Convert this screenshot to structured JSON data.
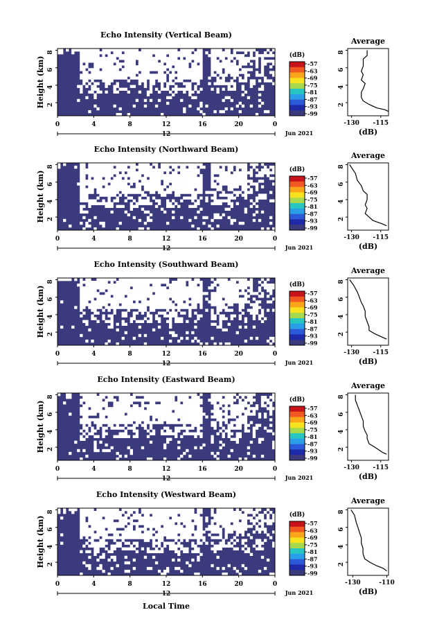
{
  "figure": {
    "xlabel": "Local Time",
    "date_label": "Jun 2021"
  },
  "colorbar": {
    "unit": "(dB)",
    "ticks": [
      "-57",
      "-63",
      "-69",
      "-75",
      "-81",
      "-87",
      "-93",
      "-99"
    ],
    "colors": [
      "#c9131a",
      "#f05a22",
      "#f9a61a",
      "#f6e21e",
      "#a6d94d",
      "#28c6c1",
      "#2a9ee6",
      "#2a5ad8",
      "#1e2aa8",
      "#3a3a7c"
    ]
  },
  "chart_data": [
    {
      "type": "heatmap",
      "title": "Echo Intensity (Vertical Beam)",
      "ylabel": "Height (km)",
      "yticks": [
        "8",
        "6",
        "4",
        "2"
      ],
      "xticks": [
        "0",
        "4",
        "8",
        "12",
        "16",
        "20",
        "0"
      ],
      "x_sub": "12",
      "date": "Jun 2021",
      "xlim": [
        0,
        24
      ],
      "ylim": [
        0.5,
        8.2
      ],
      "background_color": "#3a3a7c",
      "no_data_color": "#ffffff",
      "avg": {
        "title": "Average",
        "xlabel": "(dB)",
        "xticks": [
          "-130",
          "-115"
        ],
        "xlim": [
          -132,
          -111
        ],
        "profile": [
          [
            -122,
            8
          ],
          [
            -122,
            7.4
          ],
          [
            -124,
            7
          ],
          [
            -124,
            6.2
          ],
          [
            -125,
            5.6
          ],
          [
            -124,
            5.2
          ],
          [
            -125,
            4.6
          ],
          [
            -123,
            4.2
          ],
          [
            -124,
            3.6
          ],
          [
            -125,
            3.2
          ],
          [
            -125,
            2.6
          ],
          [
            -124,
            2.2
          ],
          [
            -121,
            1.8
          ],
          [
            -117,
            1.4
          ],
          [
            -113,
            1.2
          ],
          [
            -111,
            1
          ]
        ]
      },
      "mask_seed": 11
    },
    {
      "type": "heatmap",
      "title": "Echo Intensity (Northward Beam)",
      "ylabel": "Height (km)",
      "yticks": [
        "8",
        "6",
        "4",
        "2"
      ],
      "xticks": [
        "0",
        "4",
        "8",
        "12",
        "16",
        "20",
        "0"
      ],
      "x_sub": "12",
      "date": "Jun 2021",
      "xlim": [
        0,
        24
      ],
      "ylim": [
        0.5,
        8.2
      ],
      "background_color": "#3a3a7c",
      "no_data_color": "#ffffff",
      "avg": {
        "title": "Average",
        "xlabel": "(dB)",
        "xticks": [
          "-130",
          "-115"
        ],
        "xlim": [
          -132,
          -111
        ],
        "profile": [
          [
            -131,
            8
          ],
          [
            -128,
            7
          ],
          [
            -127,
            6.2
          ],
          [
            -125,
            5.6
          ],
          [
            -124,
            5
          ],
          [
            -122,
            4.6
          ],
          [
            -122,
            4
          ],
          [
            -123,
            3.4
          ],
          [
            -122,
            3
          ],
          [
            -123,
            2.4
          ],
          [
            -121,
            2
          ],
          [
            -119,
            1.6
          ],
          [
            -114,
            1.2
          ],
          [
            -112,
            1
          ]
        ]
      },
      "mask_seed": 23
    },
    {
      "type": "heatmap",
      "title": "Echo Intensity (Southward Beam)",
      "ylabel": "Height (km)",
      "yticks": [
        "8",
        "6",
        "4",
        "2"
      ],
      "xticks": [
        "0",
        "4",
        "8",
        "12",
        "16",
        "20",
        "0"
      ],
      "x_sub": "12",
      "date": "Jun 2021",
      "xlim": [
        0,
        24
      ],
      "ylim": [
        0.5,
        8.2
      ],
      "background_color": "#3a3a7c",
      "no_data_color": "#ffffff",
      "avg": {
        "title": "Average",
        "xlabel": "(dB)",
        "xticks": [
          "-130",
          "-115"
        ],
        "xlim": [
          -132,
          -111
        ],
        "profile": [
          [
            -131,
            8
          ],
          [
            -129,
            7.4
          ],
          [
            -127,
            6.6
          ],
          [
            -126,
            6
          ],
          [
            -125,
            5.4
          ],
          [
            -124,
            5
          ],
          [
            -123,
            4.4
          ],
          [
            -123,
            3.8
          ],
          [
            -122,
            3.2
          ],
          [
            -121,
            2.6
          ],
          [
            -121,
            2.2
          ],
          [
            -118,
            1.8
          ],
          [
            -114,
            1.4
          ],
          [
            -112,
            1.2
          ]
        ]
      },
      "mask_seed": 37
    },
    {
      "type": "heatmap",
      "title": "Echo Intensity (Eastward Beam)",
      "ylabel": "Height (km)",
      "yticks": [
        "8",
        "6",
        "4",
        "2"
      ],
      "xticks": [
        "0",
        "4",
        "8",
        "12",
        "16",
        "20",
        "0"
      ],
      "x_sub": "12",
      "date": "Jun 2021",
      "xlim": [
        0,
        24
      ],
      "ylim": [
        0.5,
        8.2
      ],
      "background_color": "#3a3a7c",
      "no_data_color": "#ffffff",
      "avg": {
        "title": "Average",
        "xlabel": "(dB)",
        "xticks": [
          "-130",
          "-115"
        ],
        "xlim": [
          -132,
          -111
        ],
        "profile": [
          [
            -128,
            8
          ],
          [
            -128,
            7.4
          ],
          [
            -127,
            6.8
          ],
          [
            -126,
            6.2
          ],
          [
            -125,
            5.6
          ],
          [
            -124,
            5
          ],
          [
            -124,
            4.4
          ],
          [
            -123,
            3.8
          ],
          [
            -122,
            3.4
          ],
          [
            -122,
            3
          ],
          [
            -121,
            2.4
          ],
          [
            -118,
            2
          ],
          [
            -114,
            1.4
          ],
          [
            -112,
            1.2
          ]
        ]
      },
      "mask_seed": 51
    },
    {
      "type": "heatmap",
      "title": "Echo Intensity (Westward Beam)",
      "ylabel": "Height (km)",
      "yticks": [
        "8",
        "6",
        "4",
        "2"
      ],
      "xticks": [
        "0",
        "4",
        "8",
        "12",
        "16",
        "20",
        "0"
      ],
      "x_sub": "12",
      "date": "Jun 2021",
      "xlim": [
        0,
        24
      ],
      "ylim": [
        0.5,
        8.2
      ],
      "background_color": "#3a3a7c",
      "no_data_color": "#ffffff",
      "avg": {
        "title": "Average",
        "xlabel": "(dB)",
        "xticks": [
          "-130",
          "-110"
        ],
        "xlim": [
          -133,
          -109
        ],
        "profile": [
          [
            -131,
            8
          ],
          [
            -129,
            7.4
          ],
          [
            -128,
            6.6
          ],
          [
            -127,
            6
          ],
          [
            -126,
            5.4
          ],
          [
            -125,
            4.8
          ],
          [
            -125,
            4.2
          ],
          [
            -124,
            3.6
          ],
          [
            -124,
            3
          ],
          [
            -123,
            2.4
          ],
          [
            -120,
            2
          ],
          [
            -116,
            1.6
          ],
          [
            -112,
            1.3
          ],
          [
            -110,
            1
          ]
        ]
      },
      "mask_seed": 67
    }
  ]
}
